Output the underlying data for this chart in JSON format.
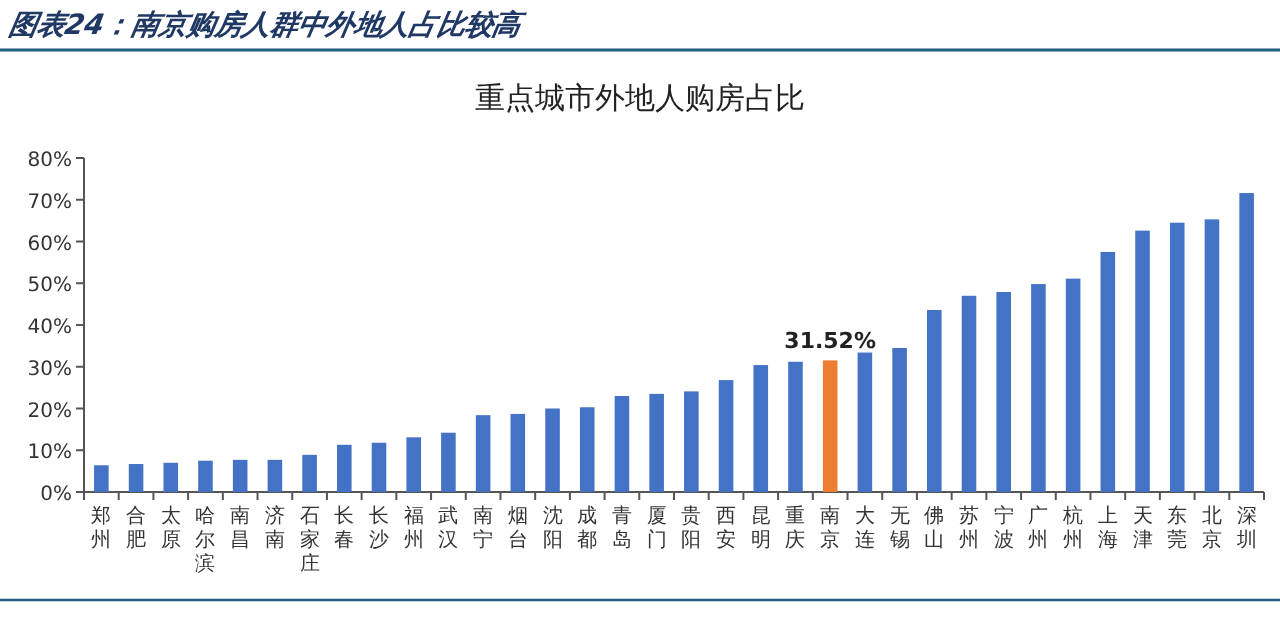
{
  "chart_data": {
    "type": "bar",
    "title": "图表24：南京购房人群中外地人占比较高",
    "subtitle": "重点城市外地人购房占比",
    "categories": [
      "郑州",
      "合肥",
      "太原",
      "哈尔滨",
      "南昌",
      "济南",
      "石家庄",
      "长春",
      "长沙",
      "福州",
      "武汉",
      "南宁",
      "烟台",
      "沈阳",
      "成都",
      "青岛",
      "厦门",
      "贵阳",
      "西安",
      "昆明",
      "重庆",
      "南京",
      "大连",
      "无锡",
      "佛山",
      "苏州",
      "宁波",
      "广州",
      "杭州",
      "上海",
      "天津",
      "东莞",
      "北京",
      "深圳"
    ],
    "values": [
      6.4,
      6.7,
      7.0,
      7.5,
      7.7,
      7.7,
      8.9,
      11.3,
      11.8,
      13.1,
      14.2,
      18.4,
      18.7,
      20.0,
      20.3,
      23.0,
      23.5,
      24.1,
      26.8,
      30.4,
      31.2,
      31.52,
      33.4,
      34.5,
      43.6,
      47.0,
      47.9,
      49.8,
      51.1,
      57.5,
      62.6,
      64.5,
      65.3,
      71.6
    ],
    "colors": [
      "#4472c4",
      "#4472c4",
      "#4472c4",
      "#4472c4",
      "#4472c4",
      "#4472c4",
      "#4472c4",
      "#4472c4",
      "#4472c4",
      "#4472c4",
      "#4472c4",
      "#4472c4",
      "#4472c4",
      "#4472c4",
      "#4472c4",
      "#4472c4",
      "#4472c4",
      "#4472c4",
      "#4472c4",
      "#4472c4",
      "#4472c4",
      "#ed7d31",
      "#4472c4",
      "#4472c4",
      "#4472c4",
      "#4472c4",
      "#4472c4",
      "#4472c4",
      "#4472c4",
      "#4472c4",
      "#4472c4",
      "#4472c4",
      "#4472c4",
      "#4472c4"
    ],
    "value_labels": [
      null,
      null,
      null,
      null,
      null,
      null,
      null,
      null,
      null,
      null,
      null,
      null,
      null,
      null,
      null,
      null,
      null,
      null,
      null,
      null,
      null,
      "31.52%",
      null,
      null,
      null,
      null,
      null,
      null,
      null,
      null,
      null,
      null,
      null,
      null
    ],
    "ylim": [
      0,
      80
    ],
    "yticks": [
      {
        "value": 0,
        "label": "0%"
      },
      {
        "value": 10,
        "label": "10%"
      },
      {
        "value": 20,
        "label": "20%"
      },
      {
        "value": 30,
        "label": "30%"
      },
      {
        "value": 40,
        "label": "40%"
      },
      {
        "value": 50,
        "label": "50%"
      },
      {
        "value": 60,
        "label": "60%"
      },
      {
        "value": 70,
        "label": "70%"
      },
      {
        "value": 80,
        "label": "80%"
      }
    ],
    "grid": false
  }
}
